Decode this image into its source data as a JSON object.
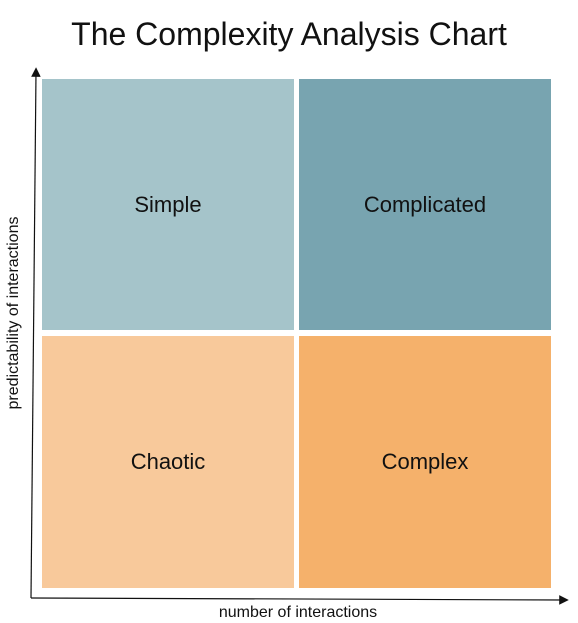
{
  "title": "The Complexity Analysis Chart",
  "axes": {
    "x_label": "number of interactions",
    "y_label": "predictability of interactions"
  },
  "quadrants": [
    {
      "label": "Simple",
      "color": "#a5c4ca"
    },
    {
      "label": "Complicated",
      "color": "#78a4b0"
    },
    {
      "label": "Chaotic",
      "color": "#f8c99b"
    },
    {
      "label": "Complex",
      "color": "#f5b16b"
    }
  ],
  "colors": {
    "axis": "#111111",
    "text": "#111111",
    "background": "#ffffff"
  }
}
